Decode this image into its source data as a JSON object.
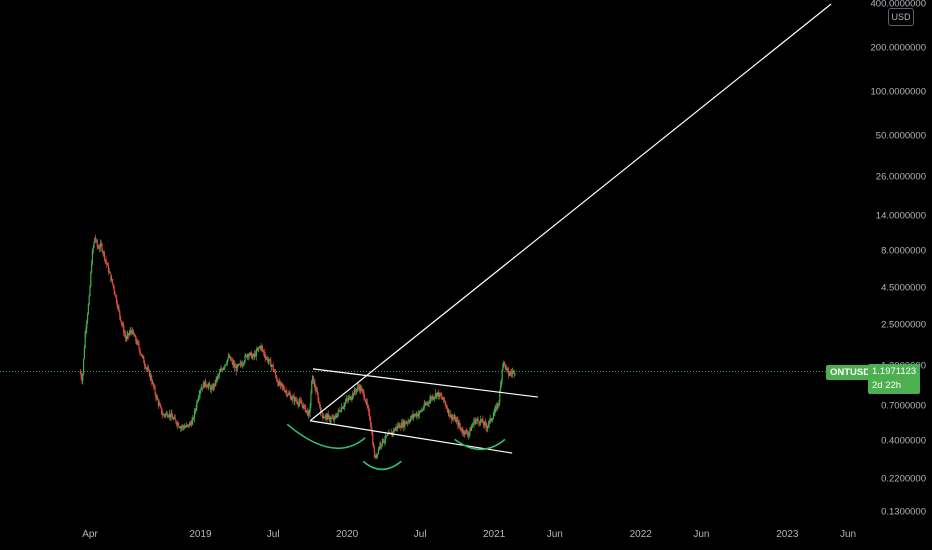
{
  "chart_data": {
    "type": "candlestick",
    "symbol": "ONTUSD",
    "currency": "USD",
    "last_price": "1.1971123",
    "countdown": "2d 22h",
    "scale": "log",
    "grid": false,
    "price_ticks": [
      "400.0000000",
      "200.0000000",
      "100.0000000",
      "50.0000000",
      "26.0000000",
      "14.0000000",
      "8.0000000",
      "4.5000000",
      "2.5000000",
      "1.3000000",
      "0.7000000",
      "0.4000000",
      "0.2200000",
      "0.1300000"
    ],
    "price_tick_values": [
      400,
      200,
      100,
      50,
      26,
      14,
      8,
      4.5,
      2.5,
      1.3,
      0.7,
      0.4,
      0.22,
      0.13
    ],
    "time_ticks": [
      "Apr",
      "2019",
      "Jul",
      "2020",
      "Jul",
      "2021",
      "Jun",
      "2022",
      "Jun",
      "2023",
      "Jun"
    ],
    "time_tick_dates": [
      "2018-04-01",
      "2019-01-01",
      "2019-07-01",
      "2020-01-01",
      "2020-07-01",
      "2021-01-01",
      "2021-06-01",
      "2022-01-01",
      "2022-06-01",
      "2023-01-01",
      "2023-06-01"
    ],
    "price_path": [
      [
        "2018-03-08",
        1.2
      ],
      [
        "2018-03-15",
        1.05
      ],
      [
        "2018-03-22",
        2.2
      ],
      [
        "2018-04-01",
        3.8
      ],
      [
        "2018-04-08",
        7.5
      ],
      [
        "2018-04-15",
        10.0
      ],
      [
        "2018-04-22",
        8.5
      ],
      [
        "2018-05-01",
        8.8
      ],
      [
        "2018-05-15",
        6.5
      ],
      [
        "2018-06-01",
        4.5
      ],
      [
        "2018-06-15",
        3.0
      ],
      [
        "2018-07-01",
        2.0
      ],
      [
        "2018-07-15",
        2.3
      ],
      [
        "2018-08-01",
        1.8
      ],
      [
        "2018-08-15",
        1.4
      ],
      [
        "2018-09-01",
        1.1
      ],
      [
        "2018-09-15",
        0.8
      ],
      [
        "2018-10-01",
        0.6
      ],
      [
        "2018-10-15",
        0.62
      ],
      [
        "2018-11-01",
        0.55
      ],
      [
        "2018-11-15",
        0.5
      ],
      [
        "2018-12-01",
        0.5
      ],
      [
        "2018-12-15",
        0.55
      ],
      [
        "2019-01-01",
        0.9
      ],
      [
        "2019-01-15",
        1.0
      ],
      [
        "2019-02-01",
        0.9
      ],
      [
        "2019-02-15",
        1.1
      ],
      [
        "2019-03-01",
        1.3
      ],
      [
        "2019-03-15",
        1.5
      ],
      [
        "2019-04-01",
        1.25
      ],
      [
        "2019-04-15",
        1.35
      ],
      [
        "2019-05-01",
        1.6
      ],
      [
        "2019-05-15",
        1.5
      ],
      [
        "2019-06-01",
        1.8
      ],
      [
        "2019-06-15",
        1.5
      ],
      [
        "2019-07-01",
        1.3
      ],
      [
        "2019-07-15",
        1.0
      ],
      [
        "2019-08-01",
        0.9
      ],
      [
        "2019-08-15",
        0.8
      ],
      [
        "2019-09-01",
        0.75
      ],
      [
        "2019-09-15",
        0.7
      ],
      [
        "2019-10-01",
        0.6
      ],
      [
        "2019-10-08",
        1.1
      ],
      [
        "2019-10-22",
        0.8
      ],
      [
        "2019-11-01",
        0.6
      ],
      [
        "2019-11-15",
        0.58
      ],
      [
        "2019-12-01",
        0.56
      ],
      [
        "2019-12-15",
        0.65
      ],
      [
        "2020-01-01",
        0.75
      ],
      [
        "2020-01-15",
        0.82
      ],
      [
        "2020-02-01",
        0.95
      ],
      [
        "2020-02-15",
        0.82
      ],
      [
        "2020-03-01",
        0.55
      ],
      [
        "2020-03-12",
        0.3
      ],
      [
        "2020-03-25",
        0.38
      ],
      [
        "2020-04-08",
        0.42
      ],
      [
        "2020-04-22",
        0.45
      ],
      [
        "2020-05-06",
        0.5
      ],
      [
        "2020-05-20",
        0.52
      ],
      [
        "2020-06-03",
        0.55
      ],
      [
        "2020-06-17",
        0.6
      ],
      [
        "2020-07-01",
        0.62
      ],
      [
        "2020-07-15",
        0.7
      ],
      [
        "2020-08-01",
        0.8
      ],
      [
        "2020-08-15",
        0.85
      ],
      [
        "2020-09-01",
        0.75
      ],
      [
        "2020-09-15",
        0.6
      ],
      [
        "2020-10-01",
        0.55
      ],
      [
        "2020-10-15",
        0.47
      ],
      [
        "2020-11-01",
        0.45
      ],
      [
        "2020-11-15",
        0.55
      ],
      [
        "2020-12-01",
        0.55
      ],
      [
        "2020-12-15",
        0.5
      ],
      [
        "2021-01-01",
        0.6
      ],
      [
        "2021-01-15",
        0.75
      ],
      [
        "2021-01-25",
        1.4
      ],
      [
        "2021-02-08",
        1.15
      ],
      [
        "2021-02-22",
        1.2
      ]
    ],
    "annotations": {
      "trendlines": [
        [
          [
            "2019-10-01",
            0.55
          ],
          [
            "2023-04-20",
            400
          ]
        ],
        [
          [
            "2019-10-08",
            1.25
          ],
          [
            "2021-04-20",
            0.8
          ]
        ],
        [
          [
            "2019-10-01",
            0.55
          ],
          [
            "2021-02-15",
            0.33
          ]
        ]
      ],
      "arcs": [
        {
          "from": [
            "2019-08-05",
            0.52
          ],
          "to": [
            "2020-02-15",
            0.42
          ],
          "low": [
            "2019-11-20",
            0.36
          ]
        },
        {
          "from": [
            "2020-02-10",
            0.29
          ],
          "to": [
            "2020-05-15",
            0.29
          ],
          "low": [
            "2020-03-28",
            0.255
          ]
        },
        {
          "from": [
            "2020-09-25",
            0.41
          ],
          "to": [
            "2021-01-28",
            0.41
          ],
          "low": [
            "2020-11-28",
            0.35
          ]
        }
      ]
    }
  }
}
